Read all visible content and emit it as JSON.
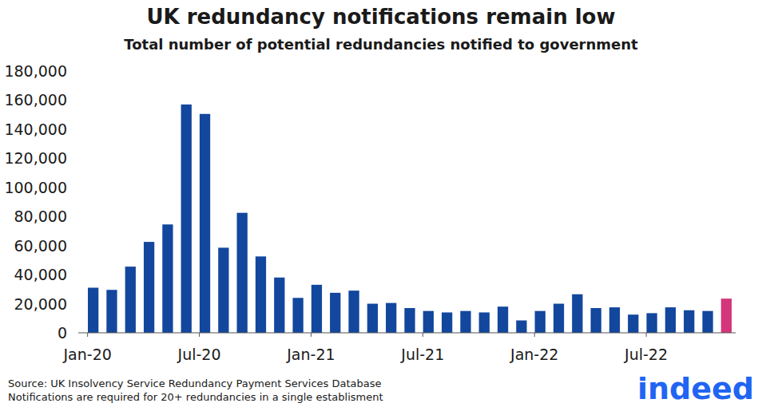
{
  "chart_data": {
    "type": "bar",
    "title": "UK redundancy notifications remain low",
    "subtitle": "Total number of potential redundancies notified to government",
    "categories": [
      "Jan-20",
      null,
      null,
      null,
      null,
      null,
      "Jul-20",
      null,
      null,
      null,
      null,
      null,
      "Jan-21",
      null,
      null,
      null,
      null,
      null,
      "Jul-21",
      null,
      null,
      null,
      null,
      null,
      "Jan-22",
      null,
      null,
      null,
      null,
      null,
      "Jul-22",
      null,
      null,
      null,
      null
    ],
    "values": [
      31000,
      29500,
      45500,
      62500,
      74500,
      157000,
      150500,
      58500,
      82500,
      52500,
      38000,
      24000,
      33000,
      27500,
      29000,
      20000,
      20500,
      17000,
      15000,
      14000,
      15000,
      14000,
      18000,
      8500,
      15000,
      20000,
      26500,
      17000,
      17500,
      12500,
      13500,
      17500,
      15500,
      15000,
      23500
    ],
    "colors": [
      "#12479d",
      "#12479d",
      "#12479d",
      "#12479d",
      "#12479d",
      "#12479d",
      "#12479d",
      "#12479d",
      "#12479d",
      "#12479d",
      "#12479d",
      "#12479d",
      "#12479d",
      "#12479d",
      "#12479d",
      "#12479d",
      "#12479d",
      "#12479d",
      "#12479d",
      "#12479d",
      "#12479d",
      "#12479d",
      "#12479d",
      "#12479d",
      "#12479d",
      "#12479d",
      "#12479d",
      "#12479d",
      "#12479d",
      "#12479d",
      "#12479d",
      "#12479d",
      "#12479d",
      "#12479d",
      "#d4367a"
    ],
    "ylim": [
      0,
      180000
    ],
    "yticks": [
      0,
      {
        "value": 20000,
        "label": "20,000"
      },
      {
        "value": 40000,
        "label": "40,000"
      },
      {
        "value": 60000,
        "label": "60,000"
      },
      {
        "value": 80000,
        "label": "80,000"
      },
      {
        "value": 100000,
        "label": "100,000"
      },
      {
        "value": 120000,
        "label": "120,000"
      },
      {
        "value": 140000,
        "label": "140,000"
      },
      {
        "value": 160000,
        "label": "160,000"
      },
      {
        "value": 180000,
        "label": "180,000"
      }
    ],
    "grid": false,
    "notes": [
      "Source: UK Insolvency Service Redundancy Payment Services Database",
      "Notifications are required for 20+ redundancies in a single establisment"
    ],
    "logo": "indeed"
  }
}
